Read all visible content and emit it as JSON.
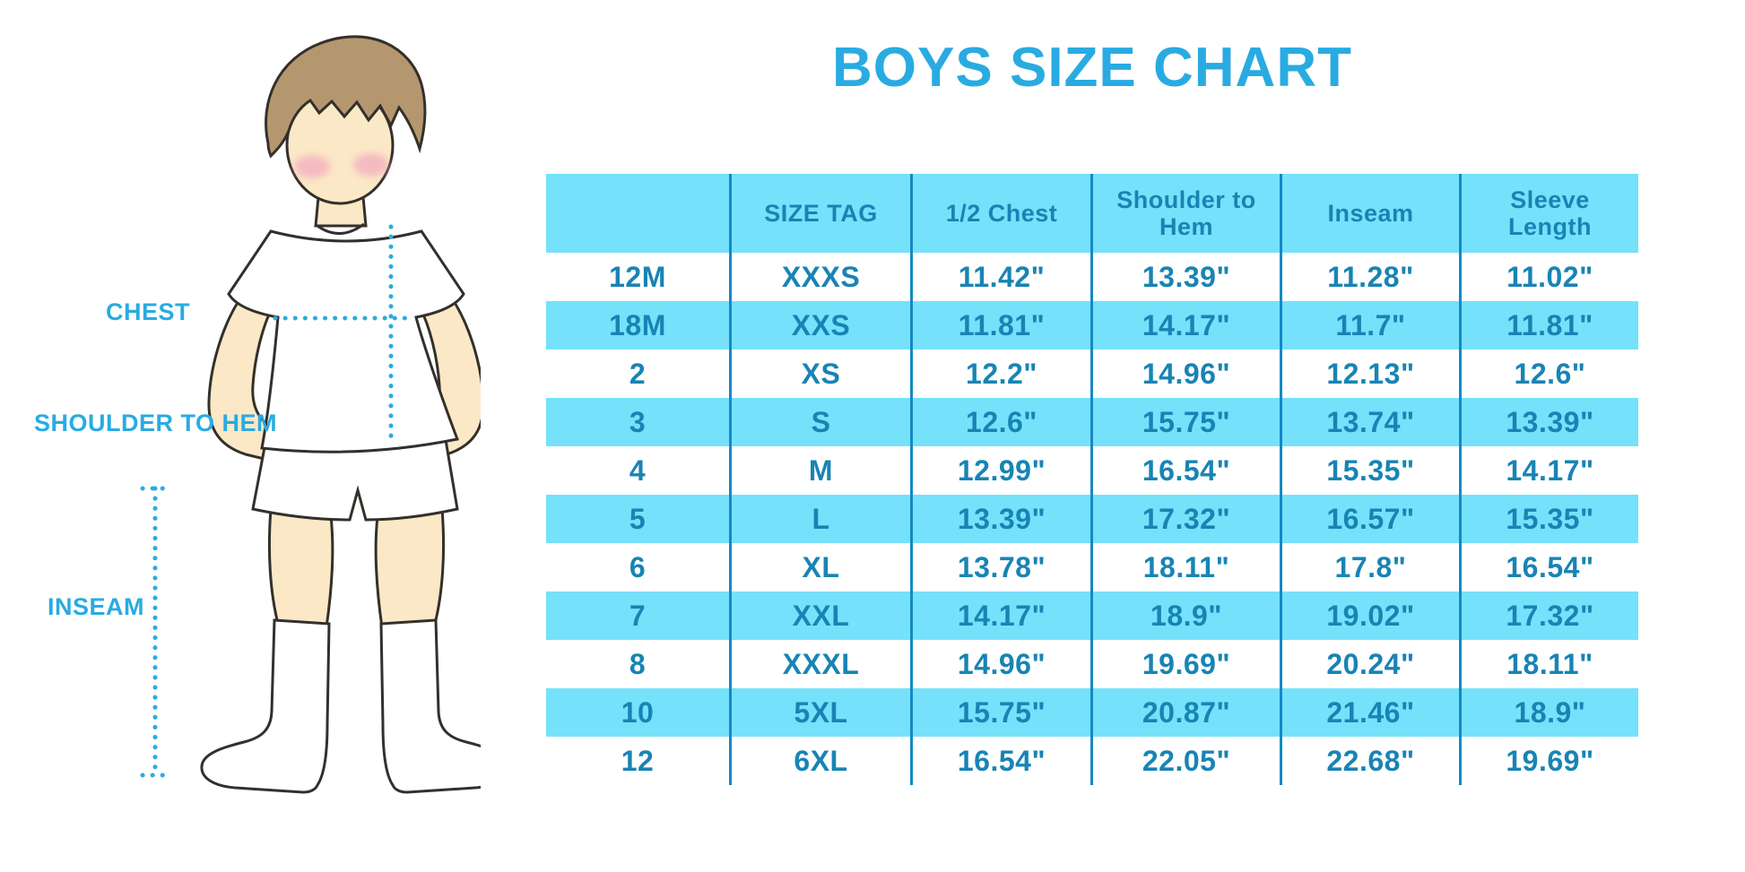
{
  "title": "BOYS SIZE CHART",
  "colors": {
    "accent_blue": "#29ABE2",
    "band_cyan": "#76E1FA",
    "table_text_blue": "#1884B4",
    "grid_line_blue": "#1589C4",
    "skin": "#FBE8C6",
    "hair_brown": "#B5976F",
    "background": "#FFFFFF"
  },
  "diagram": {
    "labels": {
      "chest": "CHEST",
      "shoulder_to_hem": "SHOULDER TO HEM",
      "inseam": "INSEAM"
    }
  },
  "chart_data": {
    "type": "table",
    "title": "BOYS SIZE CHART",
    "columns": [
      "",
      "SIZE TAG",
      "1/2 Chest",
      "Shoulder to Hem",
      "Inseam",
      "Sleeve Length"
    ],
    "rows": [
      [
        "12M",
        "XXXS",
        "11.42\"",
        "13.39\"",
        "11.28\"",
        "11.02\""
      ],
      [
        "18M",
        "XXS",
        "11.81\"",
        "14.17\"",
        "11.7\"",
        "11.81\""
      ],
      [
        "2",
        "XS",
        "12.2\"",
        "14.96\"",
        "12.13\"",
        "12.6\""
      ],
      [
        "3",
        "S",
        "12.6\"",
        "15.75\"",
        "13.74\"",
        "13.39\""
      ],
      [
        "4",
        "M",
        "12.99\"",
        "16.54\"",
        "15.35\"",
        "14.17\""
      ],
      [
        "5",
        "L",
        "13.39\"",
        "17.32\"",
        "16.57\"",
        "15.35\""
      ],
      [
        "6",
        "XL",
        "13.78\"",
        "18.11\"",
        "17.8\"",
        "16.54\""
      ],
      [
        "7",
        "XXL",
        "14.17\"",
        "18.9\"",
        "19.02\"",
        "17.32\""
      ],
      [
        "8",
        "XXXL",
        "14.96\"",
        "19.69\"",
        "20.24\"",
        "18.11\""
      ],
      [
        "10",
        "5XL",
        "15.75\"",
        "20.87\"",
        "21.46\"",
        "18.9\""
      ],
      [
        "12",
        "6XL",
        "16.54\"",
        "22.05\"",
        "22.68\"",
        "19.69\""
      ]
    ],
    "layout": {
      "header_background": "#76E1FA",
      "alternating_rows": true,
      "grid": "vertical-lines-only"
    }
  }
}
